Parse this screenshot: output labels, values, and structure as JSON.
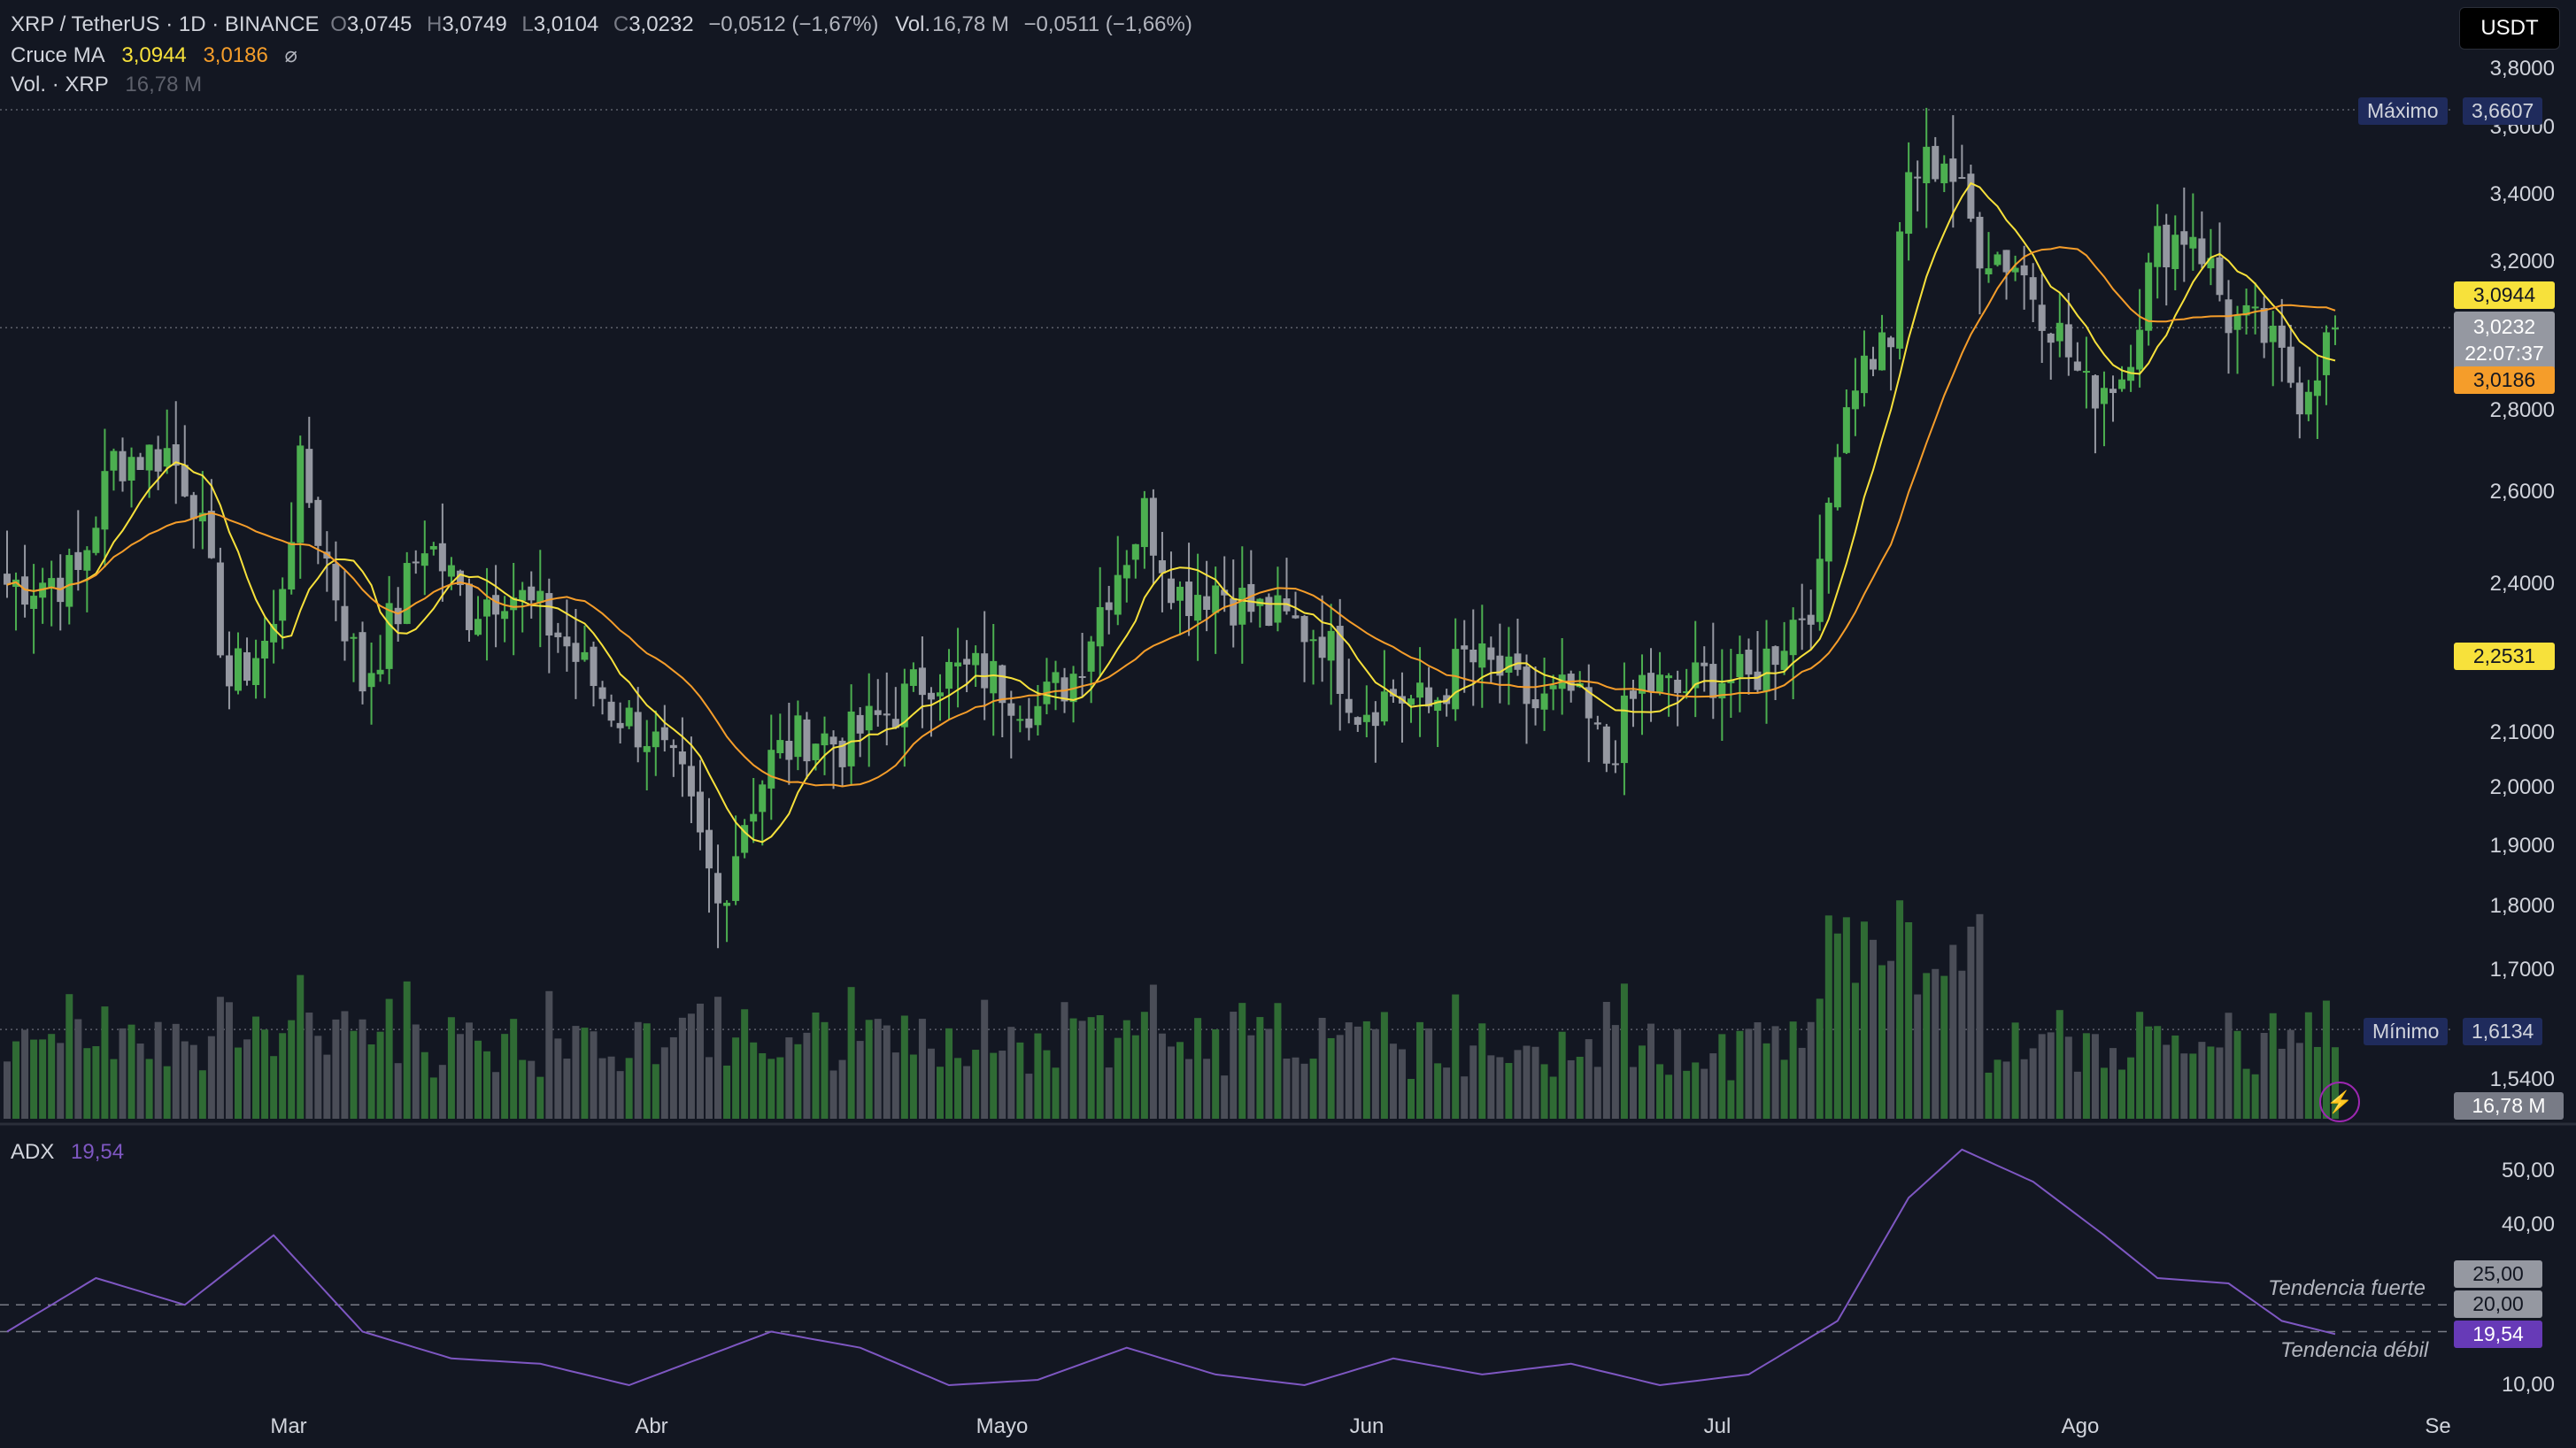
{
  "header": {
    "symbol": "XRP / TetherUS · 1D · BINANCE",
    "open_label": "O",
    "open": "3,0745",
    "high_label": "H",
    "high": "3,0749",
    "low_label": "L",
    "low": "3,0104",
    "close_label": "C",
    "close": "3,0232",
    "change": "−0,0512 (−1,67%)",
    "vol_label": "Vol.",
    "vol": "16,78 M",
    "vol_change": "−0,0511 (−1,66%)",
    "ma_label": "Cruce MA",
    "ma_fast": "3,0944",
    "ma_slow": "3,0186",
    "ma_icon": "⌀",
    "vol_study": "Vol. · XRP",
    "vol_study_value": "16,78 M"
  },
  "currency": "USDT",
  "price_axis": {
    "ticks": [
      "3,8000",
      "3,6000",
      "3,4000",
      "3,2000",
      "2,8000",
      "2,6000",
      "2,4000",
      "2,1000",
      "2,0000",
      "1,9000",
      "1,8000",
      "1,7000",
      "1,5400"
    ],
    "tick_values": [
      3.8,
      3.6,
      3.4,
      3.2,
      2.8,
      2.6,
      2.4,
      2.1,
      2.0,
      1.9,
      1.8,
      1.7,
      1.54
    ]
  },
  "badges": {
    "max_label": "Máximo",
    "max": "3,6607",
    "min_label": "Mínimo",
    "min": "1,6134",
    "ma_fast": "3,0944",
    "last_price": "3,0232",
    "countdown": "22:07:37",
    "ma_slow": "3,0186",
    "cross_price": "2,2531",
    "volume": "16,78 M"
  },
  "adx": {
    "label": "ADX",
    "value": "19,54",
    "ticks": [
      "50,00",
      "40,00",
      "25,00",
      "20,00",
      "10,00"
    ],
    "strong_label": "Tendencia fuerte",
    "weak_label": "Tendencia débil"
  },
  "time_axis": [
    "Mar",
    "Abr",
    "Mayo",
    "Jun",
    "Jul",
    "Ago",
    "Se"
  ],
  "colors": {
    "bg": "#131722",
    "up": "#4caf50",
    "down": "#9598a1",
    "ma_fast": "#f7e13b",
    "ma_slow": "#f59d2a",
    "adx": "#7e57c2",
    "badge_max": "#1f2b5c"
  },
  "chart_data": {
    "type": "candlestick",
    "interval": "1D",
    "anchors": [
      {
        "day": 0,
        "close": 2.4
      },
      {
        "day": 8,
        "close": 2.42
      },
      {
        "day": 12,
        "close": 2.68
      },
      {
        "day": 18,
        "close": 2.7
      },
      {
        "day": 21,
        "close": 2.6
      },
      {
        "day": 25,
        "close": 2.2
      },
      {
        "day": 30,
        "close": 2.3
      },
      {
        "day": 33,
        "close": 2.65
      },
      {
        "day": 36,
        "close": 2.45
      },
      {
        "day": 40,
        "close": 2.2
      },
      {
        "day": 44,
        "close": 2.35
      },
      {
        "day": 47,
        "close": 2.5
      },
      {
        "day": 52,
        "close": 2.35
      },
      {
        "day": 56,
        "close": 2.4
      },
      {
        "day": 62,
        "close": 2.3
      },
      {
        "day": 68,
        "close": 2.15
      },
      {
        "day": 72,
        "close": 2.1
      },
      {
        "day": 76,
        "close": 2.0
      },
      {
        "day": 80,
        "close": 1.8
      },
      {
        "day": 83,
        "close": 1.95
      },
      {
        "day": 86,
        "close": 2.05
      },
      {
        "day": 90,
        "close": 2.1
      },
      {
        "day": 94,
        "close": 2.08
      },
      {
        "day": 100,
        "close": 2.15
      },
      {
        "day": 104,
        "close": 2.22
      },
      {
        "day": 110,
        "close": 2.22
      },
      {
        "day": 116,
        "close": 2.15
      },
      {
        "day": 120,
        "close": 2.22
      },
      {
        "day": 124,
        "close": 2.4
      },
      {
        "day": 128,
        "close": 2.55
      },
      {
        "day": 132,
        "close": 2.38
      },
      {
        "day": 136,
        "close": 2.4
      },
      {
        "day": 140,
        "close": 2.35
      },
      {
        "day": 144,
        "close": 2.32
      },
      {
        "day": 148,
        "close": 2.3
      },
      {
        "day": 152,
        "close": 2.15
      },
      {
        "day": 156,
        "close": 2.18
      },
      {
        "day": 160,
        "close": 2.15
      },
      {
        "day": 164,
        "close": 2.25
      },
      {
        "day": 168,
        "close": 2.22
      },
      {
        "day": 172,
        "close": 2.15
      },
      {
        "day": 176,
        "close": 2.18
      },
      {
        "day": 180,
        "close": 2.05
      },
      {
        "day": 184,
        "close": 2.2
      },
      {
        "day": 188,
        "close": 2.18
      },
      {
        "day": 192,
        "close": 2.22
      },
      {
        "day": 196,
        "close": 2.2
      },
      {
        "day": 200,
        "close": 2.3
      },
      {
        "day": 204,
        "close": 2.4
      },
      {
        "day": 206,
        "close": 2.75
      },
      {
        "day": 208,
        "close": 2.9
      },
      {
        "day": 212,
        "close": 3.0
      },
      {
        "day": 214,
        "close": 3.45
      },
      {
        "day": 218,
        "close": 3.52
      },
      {
        "day": 222,
        "close": 3.25
      },
      {
        "day": 226,
        "close": 3.2
      },
      {
        "day": 230,
        "close": 3.05
      },
      {
        "day": 234,
        "close": 2.85
      },
      {
        "day": 238,
        "close": 2.9
      },
      {
        "day": 242,
        "close": 3.25
      },
      {
        "day": 246,
        "close": 3.3
      },
      {
        "day": 250,
        "close": 3.05
      },
      {
        "day": 254,
        "close": 3.0
      },
      {
        "day": 258,
        "close": 2.85
      },
      {
        "day": 262,
        "close": 3.02
      }
    ],
    "ma_fast_value": 3.0944,
    "ma_slow_value": 3.0186,
    "last_close": 3.0232,
    "max": 3.6607,
    "min": 1.6134,
    "adx_points": [
      {
        "day": 0,
        "v": 20
      },
      {
        "day": 10,
        "v": 30
      },
      {
        "day": 20,
        "v": 25
      },
      {
        "day": 30,
        "v": 38
      },
      {
        "day": 40,
        "v": 20
      },
      {
        "day": 50,
        "v": 15
      },
      {
        "day": 60,
        "v": 14
      },
      {
        "day": 70,
        "v": 10
      },
      {
        "day": 78,
        "v": 15
      },
      {
        "day": 86,
        "v": 20
      },
      {
        "day": 96,
        "v": 17
      },
      {
        "day": 106,
        "v": 10
      },
      {
        "day": 116,
        "v": 11
      },
      {
        "day": 126,
        "v": 17
      },
      {
        "day": 136,
        "v": 12
      },
      {
        "day": 146,
        "v": 10
      },
      {
        "day": 156,
        "v": 15
      },
      {
        "day": 166,
        "v": 12
      },
      {
        "day": 176,
        "v": 14
      },
      {
        "day": 186,
        "v": 10
      },
      {
        "day": 196,
        "v": 12
      },
      {
        "day": 206,
        "v": 22
      },
      {
        "day": 214,
        "v": 45
      },
      {
        "day": 220,
        "v": 54
      },
      {
        "day": 228,
        "v": 48
      },
      {
        "day": 236,
        "v": 38
      },
      {
        "day": 242,
        "v": 30
      },
      {
        "day": 250,
        "v": 29
      },
      {
        "day": 256,
        "v": 22
      },
      {
        "day": 262,
        "v": 19.54
      }
    ],
    "adx_levels": [
      25,
      20
    ]
  }
}
